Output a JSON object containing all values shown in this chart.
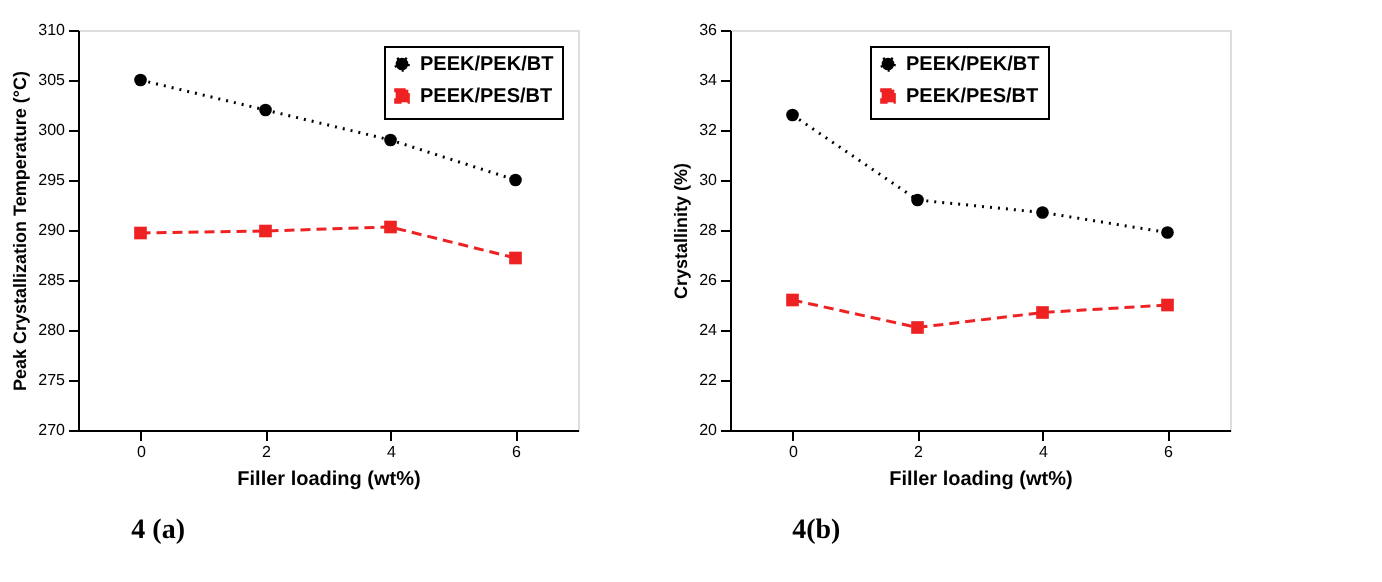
{
  "chart_data": [
    {
      "type": "line",
      "title": "4 (a)",
      "xlabel": "Filler loading (wt%)",
      "ylabel": "Peak Crystallization Temperature (°C)",
      "x": [
        0,
        2,
        4,
        6
      ],
      "xlim": [
        -1,
        7
      ],
      "xticks": [
        0,
        2,
        4,
        6
      ],
      "ylim": [
        270,
        310
      ],
      "yticks": [
        270,
        275,
        280,
        285,
        290,
        295,
        300,
        305,
        310
      ],
      "grid": false,
      "legend": "top right",
      "series": [
        {
          "name": "PEEK/PEK/BT",
          "color": "#000000",
          "marker": "circle",
          "line_style": "dotted",
          "values": [
            305,
            302,
            299,
            295
          ]
        },
        {
          "name": "PEEK/PES/BT",
          "color": "#ee2222",
          "marker": "square",
          "line_style": "dashed",
          "values": [
            289.7,
            289.9,
            290.3,
            287.2
          ]
        }
      ]
    },
    {
      "type": "line",
      "title": "4(b)",
      "xlabel": "Filler loading (wt%)",
      "ylabel": "Crystallinity (%)",
      "x": [
        0,
        2,
        4,
        6
      ],
      "xlim": [
        -1,
        7
      ],
      "xticks": [
        0,
        2,
        4,
        6
      ],
      "ylim": [
        20,
        36
      ],
      "yticks": [
        20,
        22,
        24,
        26,
        28,
        30,
        32,
        34,
        36
      ],
      "grid": false,
      "legend": "top",
      "series": [
        {
          "name": "PEEK/PEK/BT",
          "color": "#000000",
          "marker": "circle",
          "line_style": "dotted",
          "values": [
            32.6,
            29.2,
            28.7,
            27.9
          ]
        },
        {
          "name": "PEEK/PES/BT",
          "color": "#ee2222",
          "marker": "square",
          "line_style": "dashed",
          "values": [
            25.2,
            24.1,
            24.7,
            25.0
          ]
        }
      ]
    }
  ]
}
